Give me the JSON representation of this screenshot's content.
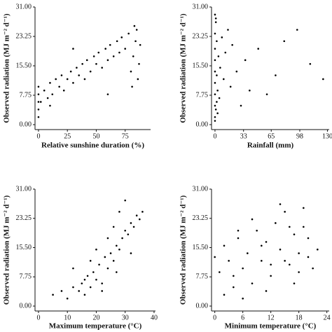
{
  "chart_data": [
    {
      "type": "scatter",
      "x_label": "Relative sunshine duration (%)",
      "y_label": "Observed radiation (MJ m⁻² d⁻¹)",
      "color": "#000000",
      "x": [
        0,
        0,
        0,
        0,
        0,
        2,
        5,
        8,
        10,
        12,
        15,
        18,
        20,
        22,
        25,
        28,
        30,
        33,
        35,
        38,
        40,
        42,
        45,
        48,
        50,
        52,
        55,
        58,
        60,
        62,
        65,
        68,
        70,
        72,
        75,
        78,
        80,
        82,
        84,
        85,
        86,
        87,
        83,
        81,
        88,
        60,
        30,
        10
      ],
      "y": [
        2,
        4,
        6,
        8,
        10,
        6,
        9,
        7,
        11,
        8,
        12,
        10,
        13,
        9,
        12,
        14,
        11,
        15,
        13,
        16,
        12,
        17,
        14,
        18,
        16,
        19,
        15,
        20,
        17,
        21,
        18,
        22,
        19,
        23,
        20,
        24,
        14,
        18,
        22,
        25,
        12,
        16,
        26,
        10,
        21,
        8,
        20,
        5
      ],
      "xlim": [
        -3,
        97
      ],
      "ylim": [
        -1.3,
        31
      ],
      "xticks": [
        0,
        25,
        50,
        75
      ],
      "yticks": [
        {
          "value": 0,
          "label": "0.00"
        },
        7.75,
        {
          "value": 15.5,
          "label": "15.50"
        },
        23.25,
        {
          "value": 31,
          "label": "31.00"
        }
      ]
    },
    {
      "type": "scatter",
      "x_label": "Rainfall (mm)",
      "y_label": "Observed radiation (MJ m⁻² d⁻¹)",
      "color": "#000000",
      "x": [
        0,
        0,
        0,
        0,
        0,
        0,
        0,
        0,
        1,
        1,
        2,
        2,
        3,
        4,
        5,
        6,
        8,
        10,
        12,
        15,
        18,
        20,
        25,
        30,
        35,
        40,
        50,
        60,
        70,
        80,
        95,
        110,
        125,
        3,
        2,
        1,
        0,
        0
      ],
      "y": [
        2,
        5,
        8,
        11,
        14,
        17,
        20,
        24,
        27,
        4,
        13,
        22,
        9,
        18,
        7,
        15,
        23,
        12,
        19,
        25,
        10,
        21,
        14,
        5,
        17,
        9,
        20,
        8,
        13,
        22,
        25,
        16,
        12,
        3,
        6,
        28,
        1,
        29
      ],
      "xlim": [
        -4,
        132
      ],
      "ylim": [
        -1.3,
        31
      ],
      "xticks": [
        0,
        33,
        65,
        98,
        130
      ],
      "yticks": [
        {
          "value": 0,
          "label": "0.00"
        },
        7.75,
        {
          "value": 15.5,
          "label": "15.50"
        },
        23.25,
        {
          "value": 31,
          "label": "31.00"
        }
      ]
    },
    {
      "type": "scatter",
      "x_label": "Maximum temperature (°C)",
      "y_label": "Observed radiation (MJ m⁻² d⁻¹)",
      "color": "#000000",
      "x": [
        5,
        8,
        10,
        12,
        14,
        15,
        16,
        17,
        18,
        19,
        20,
        21,
        22,
        23,
        24,
        25,
        26,
        27,
        28,
        29,
        30,
        31,
        32,
        33,
        34,
        35,
        36,
        24,
        26,
        28,
        30,
        22,
        20,
        18,
        32,
        27,
        12,
        16
      ],
      "y": [
        3,
        4,
        2,
        5,
        4,
        6,
        3,
        8,
        5,
        9,
        7,
        11,
        6,
        13,
        10,
        14,
        12,
        16,
        15,
        18,
        20,
        19,
        22,
        21,
        24,
        23,
        25,
        18,
        21,
        25,
        28,
        4,
        15,
        12,
        14,
        9,
        10,
        7
      ],
      "xlim": [
        -1.2,
        40.5
      ],
      "ylim": [
        -1.3,
        31
      ],
      "xticks": [
        0,
        10,
        20,
        30,
        40
      ],
      "yticks": [
        {
          "value": 0,
          "label": "0.00"
        },
        7.75,
        {
          "value": 15.5,
          "label": "15.50"
        },
        23.25,
        {
          "value": 31,
          "label": "31.00"
        }
      ]
    },
    {
      "type": "scatter",
      "x_label": "Minimum temperature (°C)",
      "y_label": "Observed radiation (MJ m⁻² d⁻¹)",
      "color": "#000000",
      "x": [
        0,
        1,
        2,
        3,
        4,
        5,
        6,
        7,
        8,
        9,
        10,
        11,
        12,
        13,
        14,
        15,
        16,
        17,
        18,
        19,
        20,
        21,
        22,
        2,
        5,
        8,
        11,
        14,
        17,
        20,
        4,
        10,
        16,
        12,
        18,
        6,
        15,
        19
      ],
      "y": [
        13,
        9,
        16,
        12,
        5,
        18,
        10,
        14,
        6,
        20,
        12,
        17,
        8,
        22,
        15,
        25,
        11,
        19,
        14,
        21,
        13,
        10,
        15,
        3,
        20,
        23,
        4,
        27,
        6,
        18,
        8,
        16,
        21,
        11,
        9,
        2,
        12,
        26
      ],
      "xlim": [
        -0.7,
        24.5
      ],
      "ylim": [
        -1.3,
        31
      ],
      "xticks": [
        0,
        6,
        12,
        18,
        24
      ],
      "yticks": [
        {
          "value": 0,
          "label": "0.00"
        },
        7.75,
        {
          "value": 15.5,
          "label": "15.50"
        },
        23.25,
        {
          "value": 31,
          "label": "31.00"
        }
      ]
    }
  ]
}
